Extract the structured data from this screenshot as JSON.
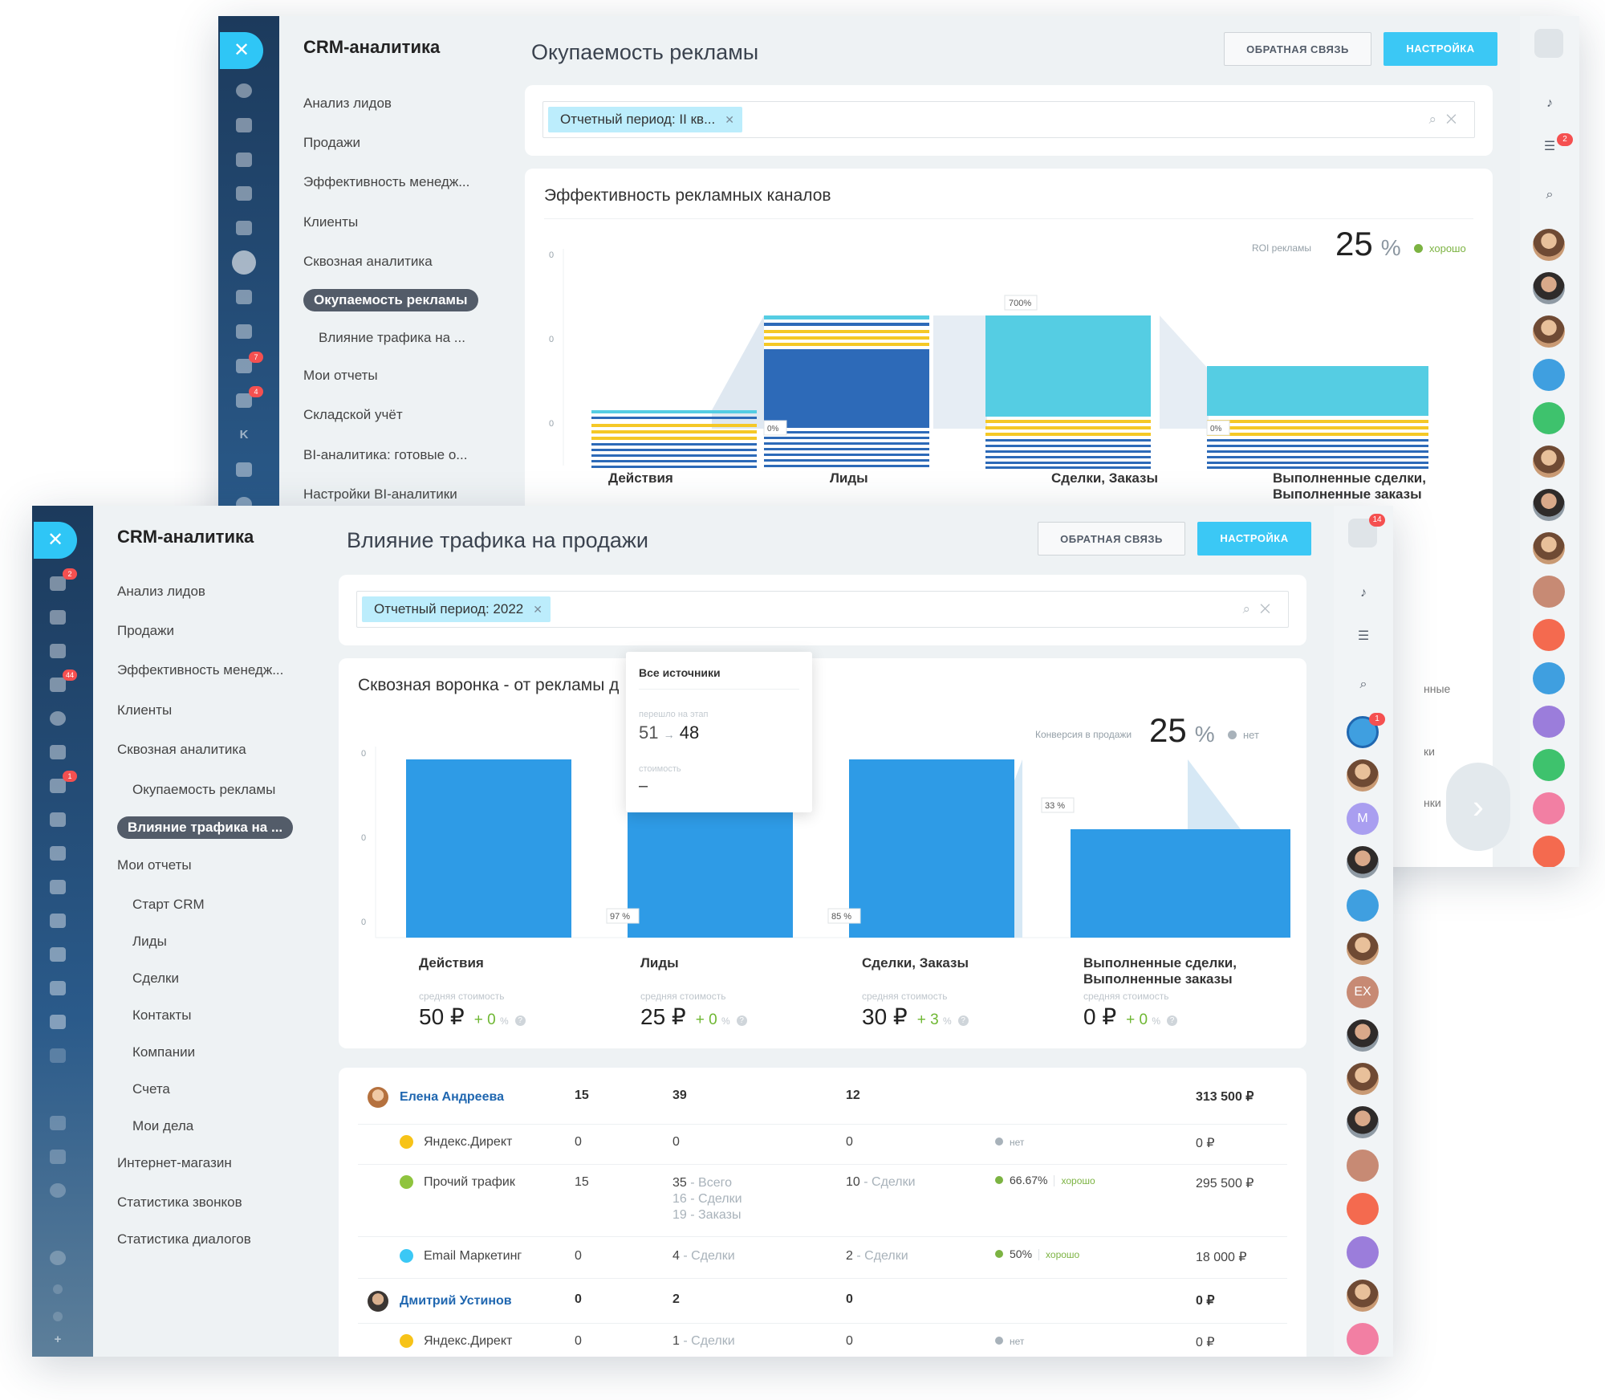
{
  "back": {
    "app_title": "CRM-аналитика",
    "page_title": "Окупаемость рекламы",
    "feedback_btn": "ОБРАТНАЯ СВЯЗЬ",
    "settings_btn": "НАСТРОЙКА",
    "nav": [
      "Анализ лидов",
      "Продажи",
      "Эффективность менедж...",
      "Клиенты",
      "Сквозная аналитика",
      "Окупаемость рекламы",
      "Влияние трафика на ...",
      "Мои отчеты",
      "Складской учёт",
      "BI-аналитика: готовые о...",
      "Настройки BI-аналитики"
    ],
    "filter_chip": "Отчетный период: II кв...",
    "panel_title": "Эффективность рекламных каналов",
    "kpi_label": "ROI рекламы",
    "kpi_value": "25",
    "kpi_unit": "%",
    "kpi_state": "хорошо",
    "yticks": [
      "0",
      "0",
      "0"
    ],
    "flow_labels": [
      "700%",
      "0%",
      "0%"
    ],
    "categories": [
      "Действия",
      "Лиды",
      "Сделки, Заказы",
      "Выполненные сделки, Выполненные заказы"
    ],
    "rail_badges": [
      "7",
      "4"
    ],
    "rail_letter": "K",
    "right_badge": "2",
    "ghost_text": [
      "нные",
      "ки",
      "нки"
    ]
  },
  "front": {
    "app_title": "CRM-аналитика",
    "page_title": "Влияние трафика на продажи",
    "feedback_btn": "ОБРАТНАЯ СВЯЗЬ",
    "settings_btn": "НАСТРОЙКА",
    "nav": [
      "Анализ лидов",
      "Продажи",
      "Эффективность менедж...",
      "Клиенты",
      "Сквозная аналитика",
      "Окупаемость рекламы",
      "Влияние трафика на ...",
      "Мои отчеты",
      "Старт CRM",
      "Лиды",
      "Сделки",
      "Контакты",
      "Компании",
      "Счета",
      "Мои дела",
      "Интернет-магазин",
      "Статистика звонков",
      "Статистика диалогов"
    ],
    "filter_chip": "Отчетный период: 2022",
    "panel_title": "Сквозная воронка - от рекламы д",
    "kpi_label": "Конверсия в продажи",
    "kpi_value": "25",
    "kpi_unit": "%",
    "kpi_state": "нет",
    "rail_badges": [
      "2",
      "44",
      "1"
    ],
    "right_badges": [
      "14",
      "1"
    ],
    "right_avatar_letters": [
      "M",
      "EX"
    ],
    "tooltip": {
      "title": "Все источники",
      "stage_label": "перешло на этап",
      "from": "51",
      "to": "48",
      "cost_label": "стоимость",
      "cost_value": "–"
    },
    "yticks": [
      "0",
      "0",
      "0"
    ],
    "flow_labels": [
      "97 %",
      "85 %",
      "33 %"
    ],
    "stages": [
      {
        "name": "Действия",
        "avg_label": "средняя стоимость",
        "avg": "50 ₽",
        "delta": "+ 0",
        "delta_unit": "%"
      },
      {
        "name": "Лиды",
        "avg_label": "средняя стоимость",
        "avg": "25 ₽",
        "delta": "+ 0",
        "delta_unit": "%"
      },
      {
        "name": "Сделки, Заказы",
        "avg_label": "средняя стоимость",
        "avg": "30 ₽",
        "delta": "+ 3",
        "delta_unit": "%"
      },
      {
        "name": "Выполненные сделки, Выполненные заказы",
        "avg_label": "средняя стоимость",
        "avg": "0 ₽",
        "delta": "+ 0",
        "delta_unit": "%"
      }
    ],
    "table": {
      "managers": [
        {
          "name": "Елена Андреева",
          "c1": "15",
          "c2": "39",
          "c3": "12",
          "total": "313 500 ₽",
          "sources": [
            {
              "name": "Яндекс.Директ",
              "color": "#f7c318",
              "c1": "0",
              "c2": "0",
              "c3": "0",
              "conv": "",
              "conv_state": "нет",
              "total": "0 ₽"
            },
            {
              "name": "Прочий трафик",
              "color": "#8fc43e",
              "c1": "15",
              "c2": "35",
              "c2_note": "Всего",
              "c2_extra": [
                "16 - Сделки",
                "19 - Заказы"
              ],
              "c3": "10",
              "c3_note": "Сделки",
              "conv": "66.67%",
              "conv_state": "хорошо",
              "total": "295 500 ₽"
            },
            {
              "name": "Email Маркетинг",
              "color": "#3bc8f5",
              "c1": "0",
              "c2": "4",
              "c2_note": "Сделки",
              "c3": "2",
              "c3_note": "Сделки",
              "conv": "50%",
              "conv_state": "хорошо",
              "total": "18 000 ₽"
            }
          ]
        },
        {
          "name": "Дмитрий Устинов",
          "c1": "0",
          "c2": "2",
          "c3": "0",
          "total": "0 ₽",
          "sources": [
            {
              "name": "Яндекс.Директ",
              "color": "#f7c318",
              "c1": "0",
              "c2": "1",
              "c2_note": "Сделки",
              "c3": "0",
              "conv": "",
              "conv_state": "нет",
              "total": "0 ₽"
            }
          ]
        }
      ]
    }
  },
  "chart_data": [
    {
      "type": "bar",
      "title": "Эффективность рекламных каналов",
      "categories": [
        "Действия",
        "Лиды",
        "Сделки, Заказы",
        "Выполненные сделки, Выполненные заказы"
      ],
      "annotations": [
        "700%",
        "0%",
        "0%"
      ],
      "kpi": {
        "label": "ROI рекламы",
        "value": "25 %",
        "state": "хорошо"
      }
    },
    {
      "type": "bar",
      "title": "Сквозная воронка - от рекламы д",
      "categories": [
        "Действия",
        "Лиды",
        "Сделки, Заказы",
        "Выполненные сделки, Выполненные заказы"
      ],
      "annotations": [
        "97 %",
        "85 %",
        "33 %"
      ],
      "kpi": {
        "label": "Конверсия в продажи",
        "value": "25 %",
        "state": "нет"
      }
    }
  ],
  "colors": {
    "accent": "#2fc6f6",
    "bar_blue": "#2e9be6",
    "bar_dark": "#2d6ab8",
    "bar_cyan": "#55cde3",
    "stripe_yellow": "#f5c826",
    "good": "#7cb342"
  }
}
